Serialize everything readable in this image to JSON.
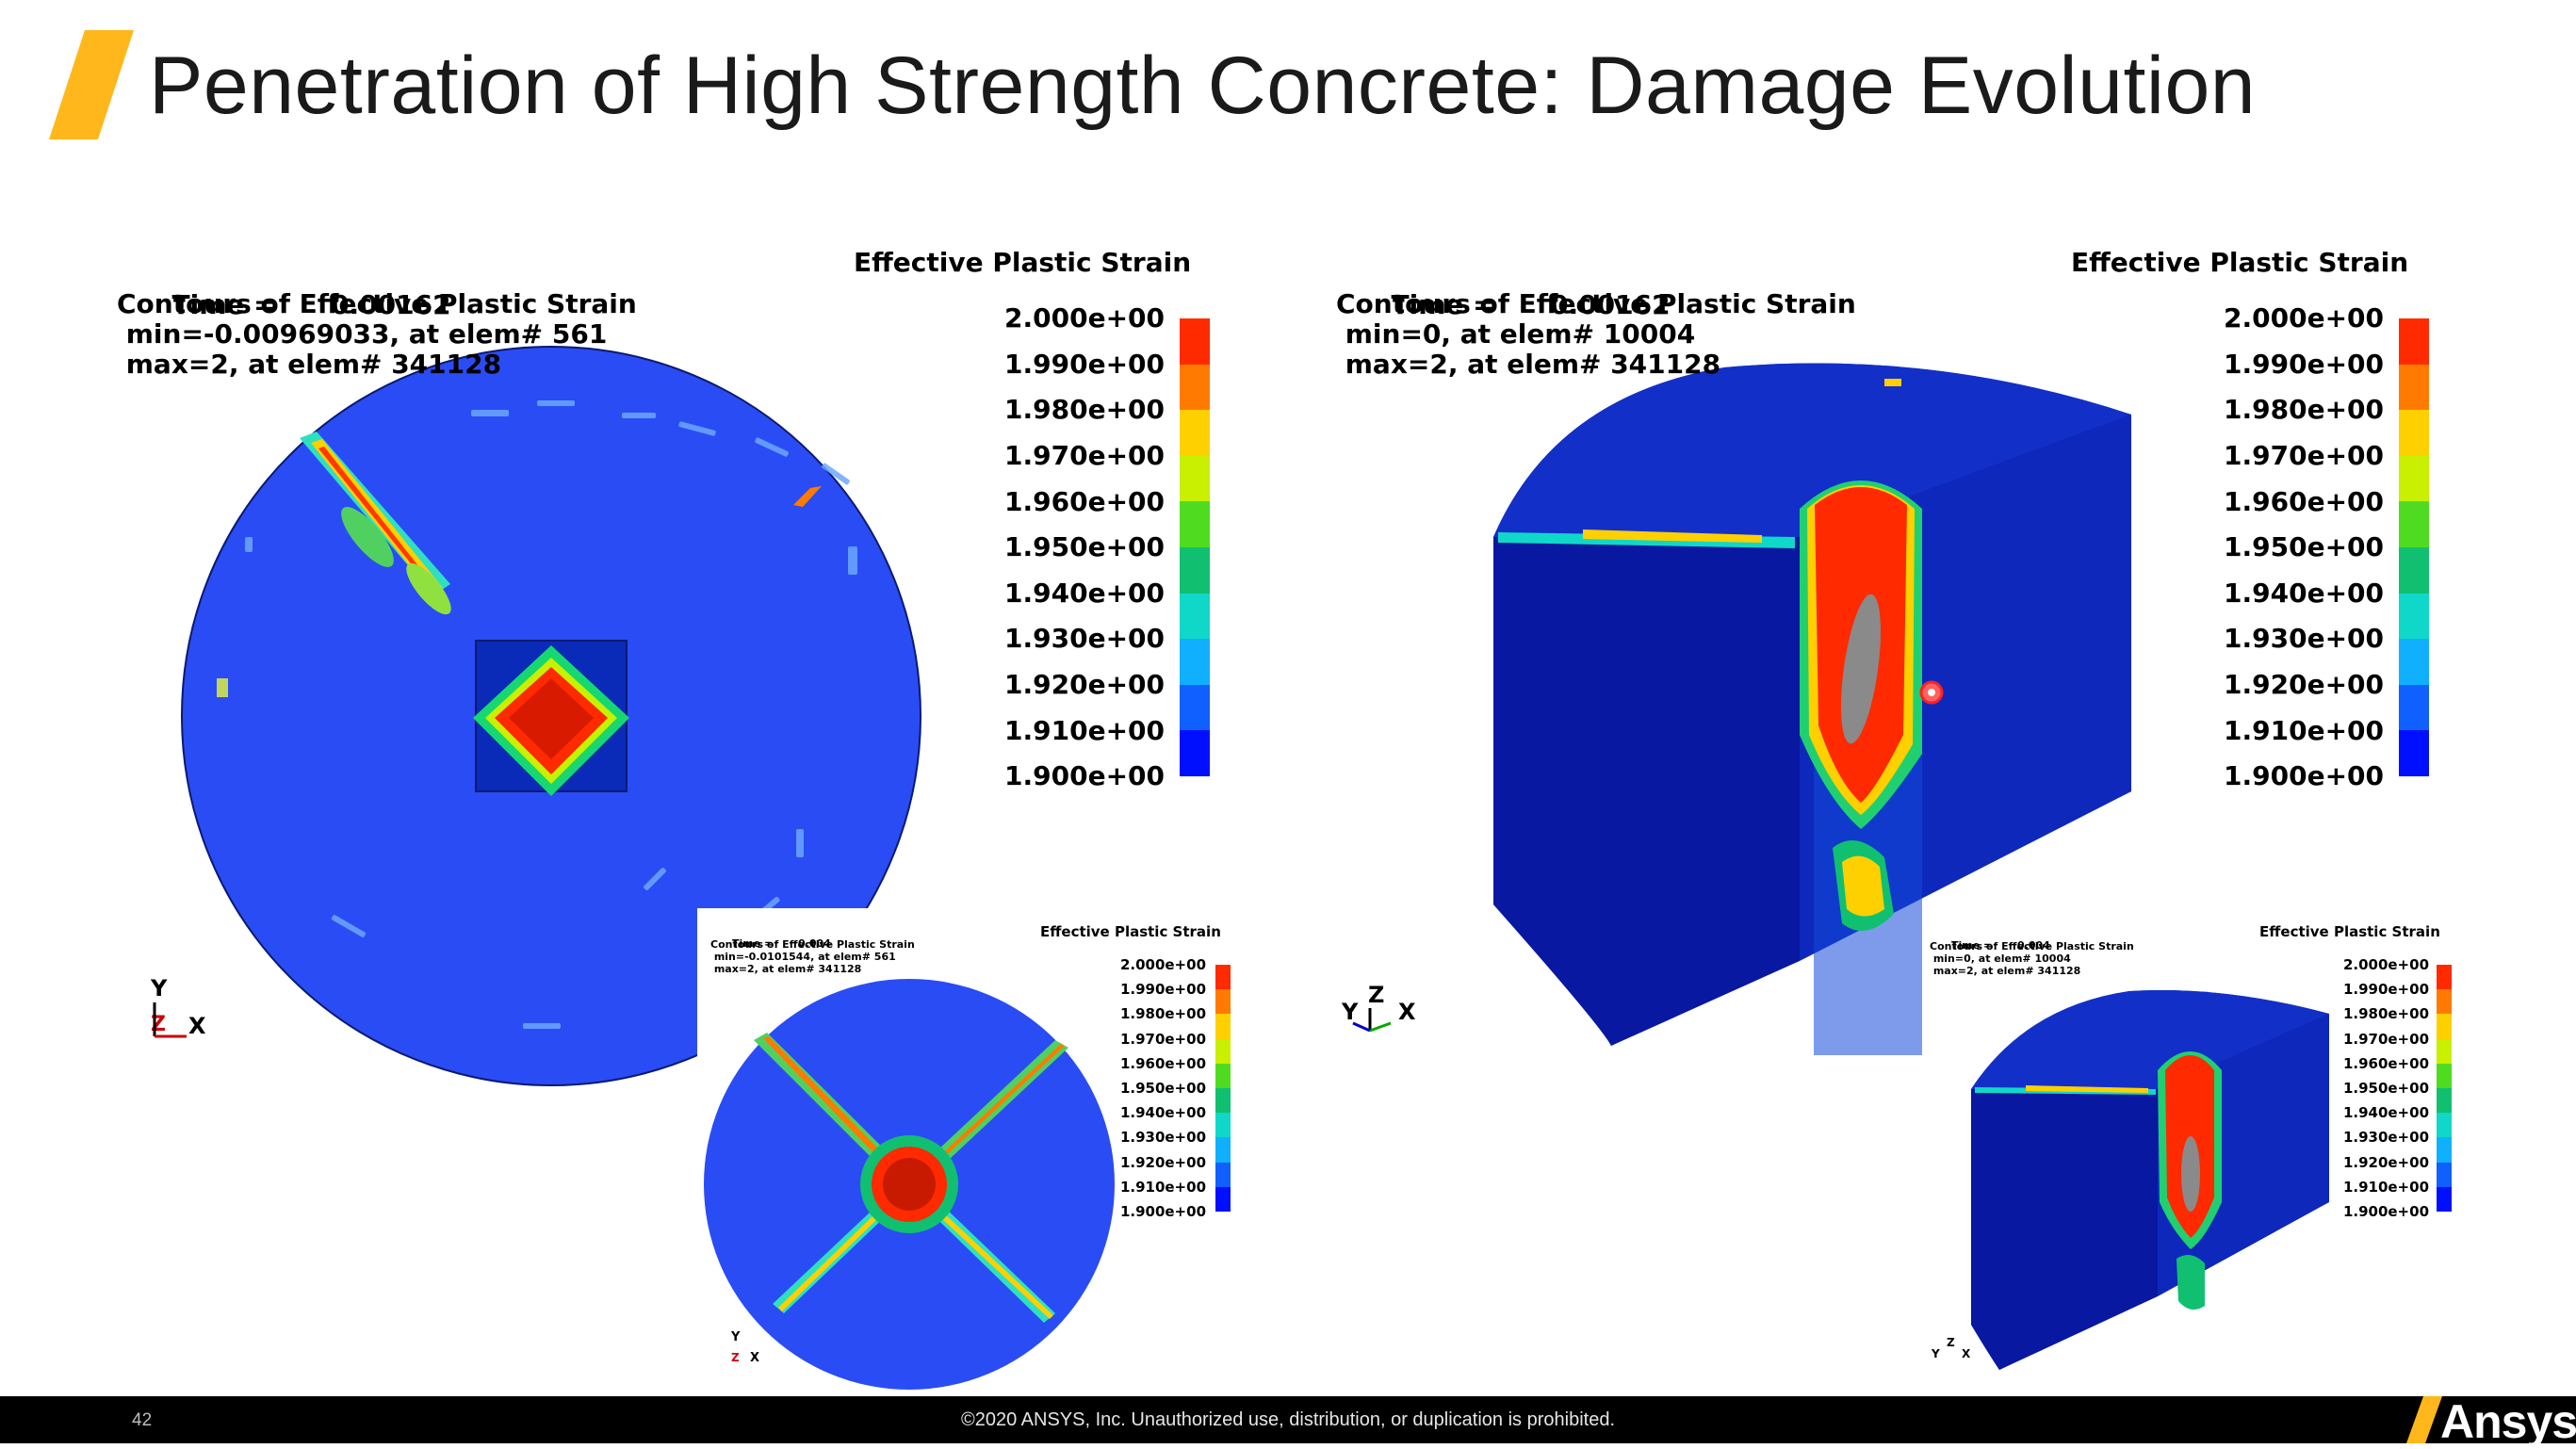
{
  "slide": {
    "title": "Penetration of High Strength Concrete: Damage Evolution",
    "page_number": "42",
    "copyright": "©2020 ANSYS, Inc. Unauthorized use, distribution, or duplication is prohibited.",
    "logo_text": "Ansys",
    "accent_color": "#FFB71B"
  },
  "legend": {
    "title": "Effective Plastic Strain",
    "ticks": [
      "2.000e+00",
      "1.990e+00",
      "1.980e+00",
      "1.970e+00",
      "1.960e+00",
      "1.950e+00",
      "1.940e+00",
      "1.930e+00",
      "1.920e+00",
      "1.910e+00",
      "1.900e+00"
    ],
    "colors": [
      "#ff2a00",
      "#ff7a00",
      "#ffd000",
      "#c8f000",
      "#4fdc20",
      "#10c070",
      "#10d8c8",
      "#10b0ff",
      "#1060ff",
      "#0010ff"
    ]
  },
  "panels": {
    "top_left": {
      "time_label": "Time =",
      "time_value": "0.00162",
      "contours": "Contours of Effective Plastic Strain",
      "min": " min=-0.00969033, at elem# 561",
      "max": " max=2, at elem# 341128",
      "axes": {
        "y": "Y",
        "z": "Z",
        "x": "X"
      }
    },
    "top_right": {
      "time_label": "Time =",
      "time_value": "0.00162",
      "contours": "Contours of Effective Plastic Strain",
      "min": " min=0, at elem# 10004",
      "max": " max=2, at elem# 341128",
      "axes": {
        "y": "Y",
        "z": "Z",
        "x": "X"
      }
    },
    "bottom_left": {
      "time_label": "Time =",
      "time_value": "0.004",
      "contours": "Contours of Effective Plastic Strain",
      "min": " min=-0.0101544, at elem# 561",
      "max": " max=2, at elem# 341128",
      "axes": {
        "y": "Y",
        "z": "Z",
        "x": "X"
      }
    },
    "bottom_right": {
      "time_label": "Time =",
      "time_value": "0.004",
      "contours": "Contours of Effective Plastic Strain",
      "min": " min=0, at elem# 10004",
      "max": " max=2, at elem# 341128",
      "axes": {
        "y": "Y",
        "z": "Z",
        "x": "X"
      }
    }
  }
}
